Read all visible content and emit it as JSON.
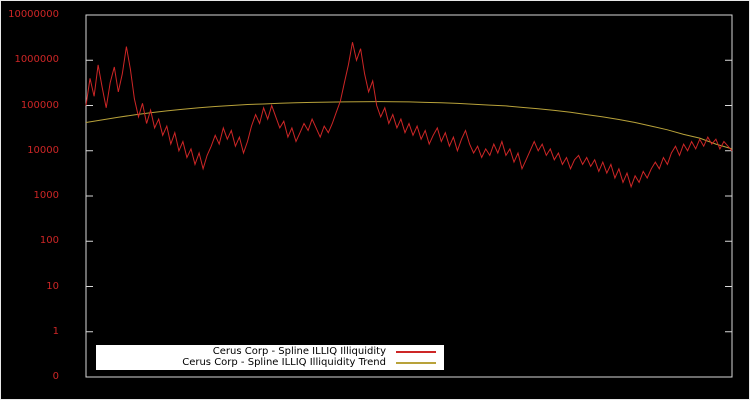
{
  "figure": {
    "background": "#000000"
  },
  "axis": {
    "tick_color": "#cd2626",
    "border_color": "#d9d9d9"
  },
  "legend": {
    "background": "#ffffff",
    "text_color": "#000000",
    "position": "bottom-center"
  },
  "chart_data": {
    "type": "line",
    "title": "",
    "xlabel": "",
    "ylabel": "",
    "y_scale": "log",
    "y_log_top": 7,
    "grid": false,
    "y_ticks": [
      "10000000",
      "1000000",
      "100000",
      "10000",
      "1000",
      "100",
      "10",
      "1",
      "0"
    ],
    "series": [
      {
        "name": "Cerus Corp - Spline ILLIQ Illiquidity",
        "color": "#cd2626",
        "values": [
          100000,
          400000,
          160000,
          790000,
          250000,
          89000,
          320000,
          710000,
          200000,
          500000,
          2000000,
          630000,
          140000,
          56000,
          112000,
          40000,
          79000,
          32000,
          50000,
          22000,
          35000,
          14000,
          25000,
          10000,
          16000,
          7100,
          11000,
          5000,
          8900,
          4000,
          7900,
          12600,
          22000,
          14000,
          32000,
          18000,
          28000,
          12600,
          20000,
          8900,
          16000,
          35000,
          63000,
          40000,
          89000,
          50000,
          100000,
          56000,
          32000,
          45000,
          20000,
          32000,
          16000,
          25000,
          40000,
          28000,
          50000,
          32000,
          20000,
          35000,
          25000,
          40000,
          71000,
          126000,
          320000,
          790000,
          2500000,
          1000000,
          1800000,
          500000,
          200000,
          350000,
          100000,
          56000,
          89000,
          40000,
          63000,
          32000,
          50000,
          25000,
          40000,
          22000,
          35000,
          18000,
          28000,
          14000,
          22000,
          32000,
          16000,
          25000,
          12600,
          20000,
          10000,
          18000,
          28000,
          14000,
          8900,
          12600,
          7100,
          11000,
          7900,
          14000,
          8900,
          16000,
          7900,
          11000,
          5600,
          8900,
          4000,
          6300,
          10000,
          16000,
          10000,
          14000,
          7900,
          11000,
          6300,
          8900,
          5000,
          7100,
          4000,
          6300,
          7900,
          5000,
          7100,
          4500,
          6300,
          3500,
          5600,
          3200,
          5000,
          2500,
          4000,
          2000,
          3200,
          1600,
          2800,
          2000,
          3500,
          2500,
          4000,
          5600,
          4000,
          7100,
          5000,
          8900,
          12600,
          7900,
          14000,
          10000,
          16000,
          11000,
          18000,
          12600,
          20000,
          14000,
          18000,
          11000,
          16000,
          12600,
          10000
        ]
      },
      {
        "name": "Cerus Corp - Spline ILLIQ Illiquidity Trend",
        "color": "#b8a23a",
        "values": [
          42000,
          48000,
          55000,
          62000,
          69000,
          76000,
          83000,
          89000,
          95000,
          100000,
          105000,
          108000,
          112000,
          115000,
          117000,
          119000,
          120000,
          121000,
          122000,
          121000,
          120000,
          117000,
          115000,
          111000,
          107000,
          102000,
          98000,
          91000,
          85000,
          78000,
          71000,
          63000,
          56000,
          49000,
          42000,
          35000,
          29000,
          23000,
          19000,
          14000,
          11000
        ]
      }
    ]
  }
}
